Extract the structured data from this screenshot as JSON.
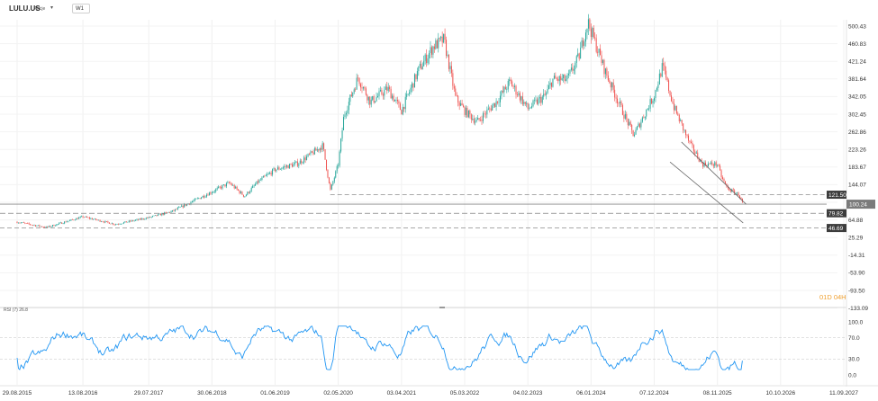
{
  "header": {
    "symbol": "LULU.US",
    "symbol_sub": "Akcje",
    "timeframe": "W1"
  },
  "countdown": "01D 04H",
  "indicator_label": "RSI (7) 26.8",
  "colors": {
    "up": "#26a69a",
    "down": "#ef5350",
    "rsi": "#2196f3",
    "price_tag": "#7b7b7b",
    "level_tag": "#3c3c3c",
    "countdown": "#f0a030"
  },
  "chart_data": {
    "type": "candlestick",
    "y_ticks": [
      "500.43",
      "460.83",
      "421.24",
      "381.64",
      "342.05",
      "302.45",
      "262.86",
      "223.26",
      "183.67",
      "144.07",
      "104.48",
      "64.88",
      "25.29",
      "-14.31",
      "-53.90",
      "-93.50",
      "-133.09"
    ],
    "ylim": [
      -133.09,
      518
    ],
    "x_ticks": [
      "29.08.2015",
      "13.08.2016",
      "29.07.2017",
      "30.06.2018",
      "01.06.2019",
      "02.05.2020",
      "03.04.2021",
      "05.03.2022",
      "04.02.2023",
      "06.01.2024",
      "07.12.2024",
      "08.11.2025",
      "10.10.2026",
      "11.09.2027"
    ],
    "current_price": "100.24",
    "levels": [
      {
        "label": "121.50",
        "value": 121.5
      },
      {
        "label": "79.82",
        "value": 79.82
      },
      {
        "label": "46.69",
        "value": 46.69
      }
    ],
    "price_path": [
      [
        "2015-08-29",
        60
      ],
      [
        "2016-02-01",
        48
      ],
      [
        "2016-08-13",
        72
      ],
      [
        "2017-02-01",
        55
      ],
      [
        "2017-07-29",
        70
      ],
      [
        "2017-12-01",
        84
      ],
      [
        "2018-06-30",
        128
      ],
      [
        "2018-10-01",
        148
      ],
      [
        "2018-12-20",
        118
      ],
      [
        "2019-03-01",
        150
      ],
      [
        "2019-06-01",
        178
      ],
      [
        "2019-10-01",
        192
      ],
      [
        "2020-02-10",
        232
      ],
      [
        "2020-03-20",
        130
      ],
      [
        "2020-05-02",
        190
      ],
      [
        "2020-06-01",
        300
      ],
      [
        "2020-08-15",
        385
      ],
      [
        "2020-10-20",
        330
      ],
      [
        "2021-01-20",
        360
      ],
      [
        "2021-04-03",
        310
      ],
      [
        "2021-07-01",
        400
      ],
      [
        "2021-09-20",
        455
      ],
      [
        "2021-11-15",
        470
      ],
      [
        "2022-01-15",
        340
      ],
      [
        "2022-03-05",
        310
      ],
      [
        "2022-05-10",
        285
      ],
      [
        "2022-08-20",
        330
      ],
      [
        "2022-11-01",
        375
      ],
      [
        "2023-02-04",
        315
      ],
      [
        "2023-05-10",
        345
      ],
      [
        "2023-06-15",
        380
      ],
      [
        "2023-09-01",
        380
      ],
      [
        "2023-11-01",
        430
      ],
      [
        "2023-12-20",
        510
      ],
      [
        "2024-01-06",
        490
      ],
      [
        "2024-03-20",
        400
      ],
      [
        "2024-06-20",
        310
      ],
      [
        "2024-08-20",
        255
      ],
      [
        "2024-12-07",
        345
      ],
      [
        "2025-01-20",
        410
      ],
      [
        "2025-03-20",
        320
      ],
      [
        "2025-06-15",
        235
      ],
      [
        "2025-08-20",
        190
      ],
      [
        "2025-11-08",
        190
      ],
      [
        "2025-12-01",
        160
      ],
      [
        "2026-01-01",
        135
      ],
      [
        "2026-03-01",
        122
      ],
      [
        "2026-03-25",
        100.24
      ]
    ],
    "rsi": {
      "label": "RSI (7)",
      "value": 26.8,
      "y_ticks": [
        "100.0",
        "70.0",
        "30.0",
        "0.0"
      ],
      "ylim": [
        0,
        100
      ],
      "levels": [
        70,
        30
      ]
    }
  }
}
